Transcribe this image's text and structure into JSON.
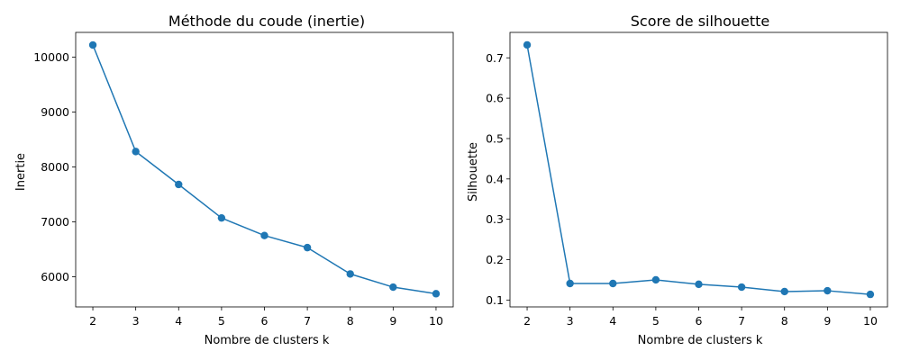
{
  "colors": {
    "series": "#1f77b4",
    "axes": "#000000",
    "background": "#ffffff"
  },
  "chart_data": [
    {
      "type": "line",
      "title": "Méthode du coude (inertie)",
      "xlabel": "Nombre de clusters k",
      "ylabel": "Inertie",
      "grid": false,
      "x": [
        2,
        3,
        4,
        5,
        6,
        7,
        8,
        9,
        10
      ],
      "xticks": [
        2,
        3,
        4,
        5,
        6,
        7,
        8,
        9,
        10
      ],
      "xticklabels": [
        "2",
        "3",
        "4",
        "5",
        "6",
        "7",
        "8",
        "9",
        "10"
      ],
      "xlim": [
        1.6,
        10.4
      ],
      "yticks": [
        6000,
        7000,
        8000,
        9000,
        10000
      ],
      "yticklabels": [
        "6000",
        "7000",
        "8000",
        "9000",
        "10000"
      ],
      "ylim": [
        5450,
        10450
      ],
      "series": [
        {
          "values": [
            10220,
            8280,
            7680,
            7070,
            6750,
            6530,
            6050,
            5810,
            5690
          ],
          "marker": "circle"
        }
      ]
    },
    {
      "type": "line",
      "title": "Score de silhouette",
      "xlabel": "Nombre de clusters k",
      "ylabel": "Silhouette",
      "grid": false,
      "x": [
        2,
        3,
        4,
        5,
        6,
        7,
        8,
        9,
        10
      ],
      "xticks": [
        2,
        3,
        4,
        5,
        6,
        7,
        8,
        9,
        10
      ],
      "xticklabels": [
        "2",
        "3",
        "4",
        "5",
        "6",
        "7",
        "8",
        "9",
        "10"
      ],
      "xlim": [
        1.6,
        10.4
      ],
      "yticks": [
        0.1,
        0.2,
        0.3,
        0.4,
        0.5,
        0.6,
        0.7
      ],
      "yticklabels": [
        "0.1",
        "0.2",
        "0.3",
        "0.4",
        "0.5",
        "0.6",
        "0.7"
      ],
      "ylim": [
        0.083,
        0.763
      ],
      "series": [
        {
          "values": [
            0.732,
            0.141,
            0.141,
            0.15,
            0.139,
            0.132,
            0.121,
            0.123,
            0.114
          ],
          "marker": "circle"
        }
      ]
    }
  ]
}
